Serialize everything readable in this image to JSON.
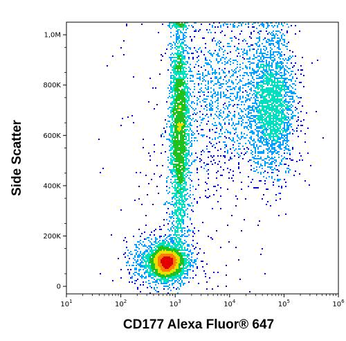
{
  "chart_data": {
    "type": "scatter",
    "subtype": "flow-cytometry-density-dot-plot",
    "title": "",
    "xlabel": "CD177 Alexa Fluor® 647",
    "ylabel": "Side Scatter",
    "x_scale": "log",
    "xlim": [
      10,
      1000000
    ],
    "ylim": [
      -30000,
      1050000
    ],
    "x_ticks": [
      {
        "value": 10,
        "base": "10",
        "exp": "1"
      },
      {
        "value": 100,
        "base": "10",
        "exp": "2"
      },
      {
        "value": 1000,
        "base": "10",
        "exp": "3"
      },
      {
        "value": 10000,
        "base": "10",
        "exp": "4"
      },
      {
        "value": 100000,
        "base": "10",
        "exp": "5"
      },
      {
        "value": 1000000,
        "base": "10",
        "exp": "6"
      }
    ],
    "y_ticks": [
      {
        "value": 0,
        "label": "0"
      },
      {
        "value": 200000,
        "label": "200K"
      },
      {
        "value": 400000,
        "label": "400K"
      },
      {
        "value": 600000,
        "label": "600K"
      },
      {
        "value": 800000,
        "label": "800K"
      },
      {
        "value": 1000000,
        "label": "1,0M"
      }
    ],
    "density_colors": [
      "#0000cc",
      "#00a0ff",
      "#00e0c0",
      "#20c020",
      "#e8e000",
      "#ff8000",
      "#e00000"
    ],
    "populations": [
      {
        "name_hint": "low-SSC dense core",
        "x_center": 700,
        "log_sd": 0.14,
        "y_center": 95000,
        "y_sd": 28000,
        "count": 2600
      },
      {
        "name_hint": "low-SSC spread",
        "x_center": 600,
        "log_sd": 0.28,
        "y_center": 100000,
        "y_sd": 50000,
        "count": 1200
      },
      {
        "name_hint": "CD177-dim granulocyte column",
        "x_center": 1200,
        "log_sd": 0.09,
        "y_center": 620000,
        "y_sd": 220000,
        "count": 4200
      },
      {
        "name_hint": "CD177-bright granulocyte cluster",
        "x_center": 60000,
        "log_sd": 0.22,
        "y_center": 720000,
        "y_sd": 140000,
        "count": 2400
      },
      {
        "name_hint": "intermediate bridge",
        "x_center": 8000,
        "log_sd": 0.45,
        "y_center": 760000,
        "y_sd": 150000,
        "count": 1000
      },
      {
        "name_hint": "scattered background",
        "x_center": 2000,
        "log_sd": 0.6,
        "y_center": 450000,
        "y_sd": 300000,
        "count": 350
      }
    ],
    "grid": false,
    "legend": "none"
  }
}
